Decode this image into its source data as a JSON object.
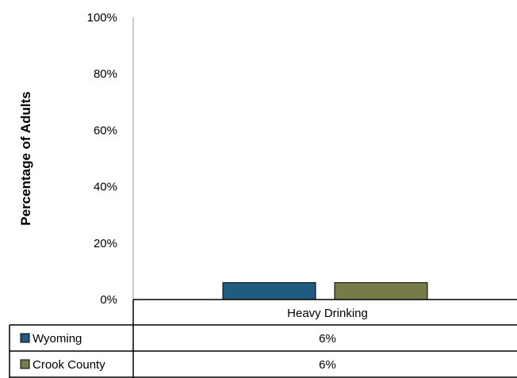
{
  "chart_data": {
    "type": "bar",
    "title": "",
    "xlabel": "",
    "ylabel": "Percentage of Adults",
    "ylim": [
      0,
      100
    ],
    "yticks": [
      "0%",
      "20%",
      "40%",
      "60%",
      "80%",
      "100%"
    ],
    "ytick_values": [
      0,
      20,
      40,
      60,
      80,
      100
    ],
    "categories": [
      "Heavy Drinking"
    ],
    "series": [
      {
        "name": "Wyoming",
        "values": [
          6
        ],
        "labels": [
          "6%"
        ],
        "color": "#1F5C80"
      },
      {
        "name": "Crook County",
        "values": [
          6
        ],
        "labels": [
          "6%"
        ],
        "color": "#767B48"
      }
    ],
    "grid": false,
    "legend": "data table below plot"
  }
}
